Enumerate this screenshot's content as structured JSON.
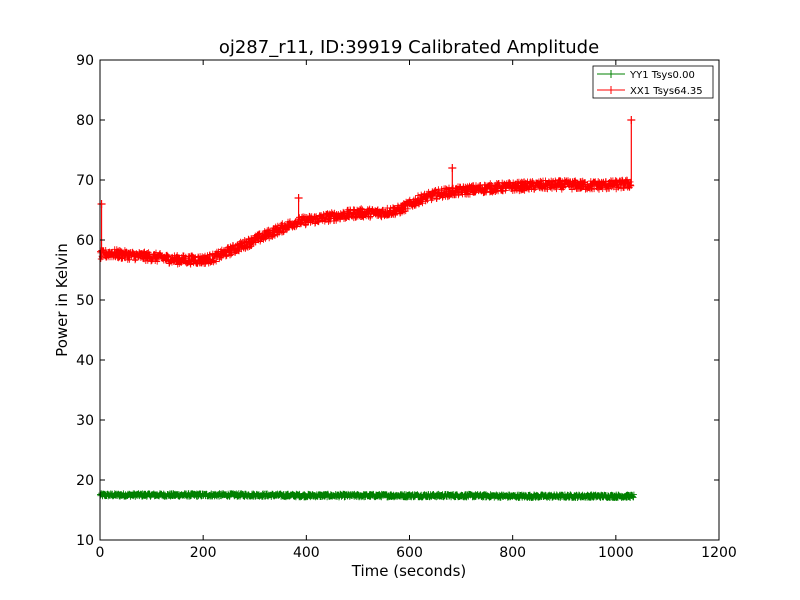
{
  "chart_data": {
    "type": "line",
    "title": "oj287_r11, ID:39919 Calibrated Amplitude",
    "xlabel": "Time (seconds)",
    "ylabel": "Power in Kelvin",
    "xlim": [
      0,
      1200
    ],
    "ylim": [
      10,
      90
    ],
    "xticks": [
      0,
      200,
      400,
      600,
      800,
      1000,
      1200
    ],
    "yticks": [
      10,
      20,
      30,
      40,
      50,
      60,
      70,
      80,
      90
    ],
    "xtick_labels": [
      "0",
      "200",
      "400",
      "600",
      "800",
      "1000",
      "1200"
    ],
    "ytick_labels": [
      "10",
      "20",
      "30",
      "40",
      "50",
      "60",
      "70",
      "80",
      "90"
    ],
    "grid": false,
    "legend_position": "top-right",
    "series": [
      {
        "name": "YY1 Tsys0.00",
        "color": "#008000",
        "marker": "+",
        "x": [
          0,
          100,
          200,
          300,
          400,
          500,
          600,
          700,
          800,
          900,
          1000,
          1035
        ],
        "y": [
          17.5,
          17.5,
          17.5,
          17.5,
          17.4,
          17.4,
          17.4,
          17.4,
          17.3,
          17.3,
          17.3,
          17.3
        ],
        "noise_band": 0.6
      },
      {
        "name": "XX1 Tsys64.35",
        "color": "#ff0000",
        "marker": "+",
        "x": [
          0,
          5,
          20,
          50,
          100,
          150,
          200,
          220,
          260,
          300,
          340,
          380,
          420,
          460,
          500,
          540,
          580,
          620,
          660,
          700,
          760,
          800,
          850,
          900,
          950,
          1000,
          1030
        ],
        "y": [
          57.5,
          57.5,
          57.8,
          57.5,
          57.2,
          56.7,
          56.7,
          57.0,
          58.5,
          60.0,
          61.5,
          63.0,
          63.5,
          64.0,
          64.5,
          64.5,
          65.0,
          66.8,
          67.8,
          68.2,
          68.7,
          68.9,
          69.1,
          69.2,
          69.1,
          69.2,
          69.4
        ],
        "noise_band": 1.6,
        "spikes": [
          {
            "x": 3,
            "y": 66
          },
          {
            "x": 385,
            "y": 67
          },
          {
            "x": 683,
            "y": 72
          },
          {
            "x": 1030,
            "y": 80
          }
        ]
      }
    ]
  }
}
